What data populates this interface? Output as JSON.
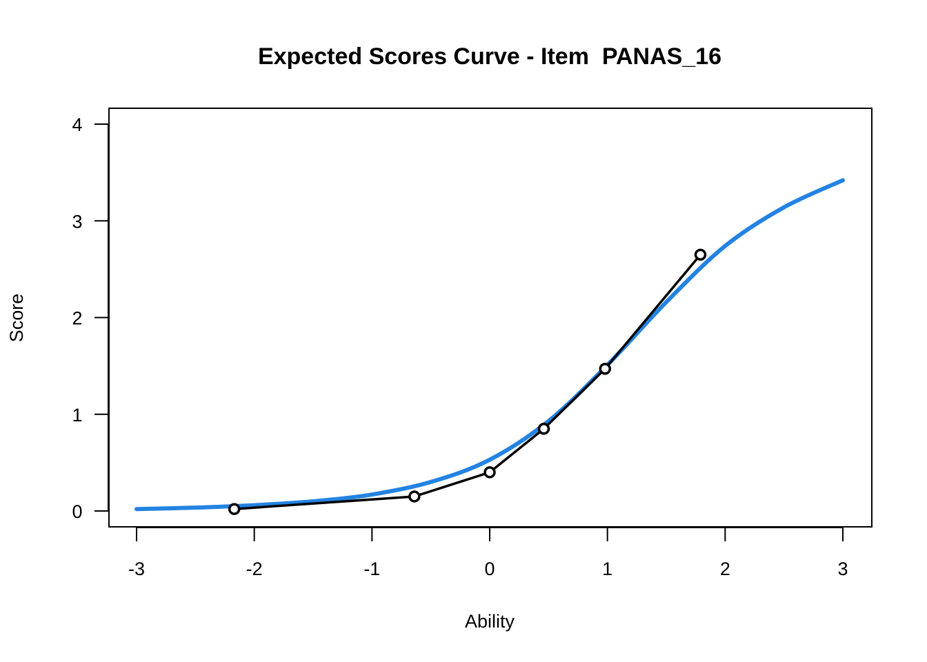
{
  "chart_data": {
    "type": "line",
    "title": "Expected Scores Curve - Item  PANAS_16",
    "xlabel": "Ability",
    "ylabel": "Score",
    "xlim": [
      -3,
      3
    ],
    "ylim": [
      0,
      4
    ],
    "x_ticks": [
      "-3",
      "-2",
      "-1",
      "0",
      "1",
      "2",
      "3"
    ],
    "y_ticks": [
      "0",
      "1",
      "2",
      "3",
      "4"
    ],
    "grid": false,
    "legend": "none",
    "series": [
      {
        "kind": "model-curve",
        "color": "#2383e2",
        "x": [
          -3.0,
          -2.5,
          -2.0,
          -1.5,
          -1.0,
          -0.5,
          0.0,
          0.5,
          1.0,
          1.5,
          2.0,
          2.5,
          3.0
        ],
        "y": [
          0.02,
          0.035,
          0.06,
          0.1,
          0.17,
          0.3,
          0.53,
          0.93,
          1.51,
          2.16,
          2.74,
          3.14,
          3.42
        ]
      },
      {
        "kind": "observed-points",
        "color": "#000000",
        "marker": "circle",
        "x": [
          -2.17,
          -0.64,
          0.0,
          0.46,
          0.98,
          1.79
        ],
        "y": [
          0.02,
          0.15,
          0.4,
          0.85,
          1.47,
          2.65
        ]
      }
    ]
  }
}
